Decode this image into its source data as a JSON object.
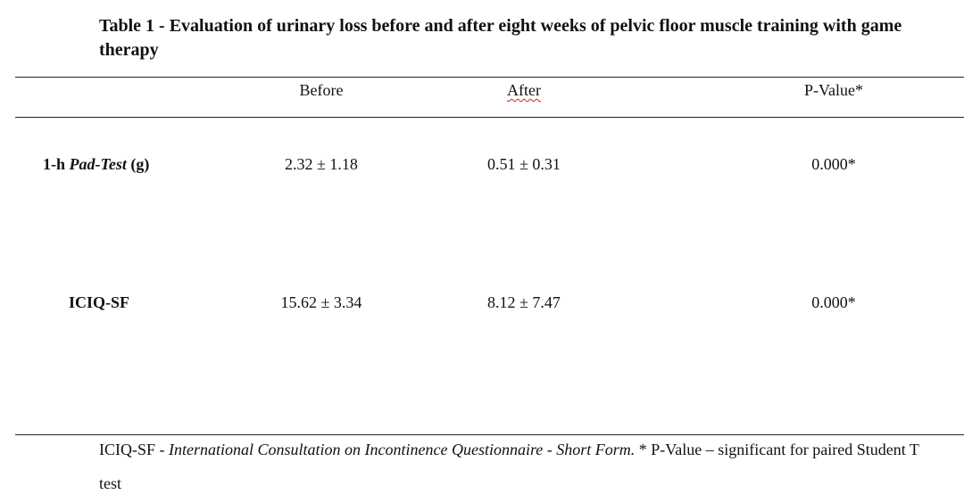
{
  "caption": "Table 1 - Evaluation of urinary loss before and after eight weeks of pelvic floor muscle training with game therapy",
  "columns": {
    "before": "Before",
    "after": "After",
    "p_value": "P-Value*"
  },
  "rows": [
    {
      "label_prefix": "1-h ",
      "label_em": "Pad-Test",
      "label_suffix": " (g)",
      "before": "2.32 ± 1.18",
      "after": "0.51 ± 0.31",
      "p_value": "0.000*"
    },
    {
      "label": "ICIQ-SF",
      "before": "15.62 ± 3.34",
      "after": "8.12 ± 7.47",
      "p_value": "0.000*"
    }
  ],
  "footnote": {
    "abbr": "ICIQ-SF - ",
    "expansion": "International Consultation on Incontinence Questionnaire - Short Form.",
    "note": " * P-Value – significant for paired Student T test"
  }
}
